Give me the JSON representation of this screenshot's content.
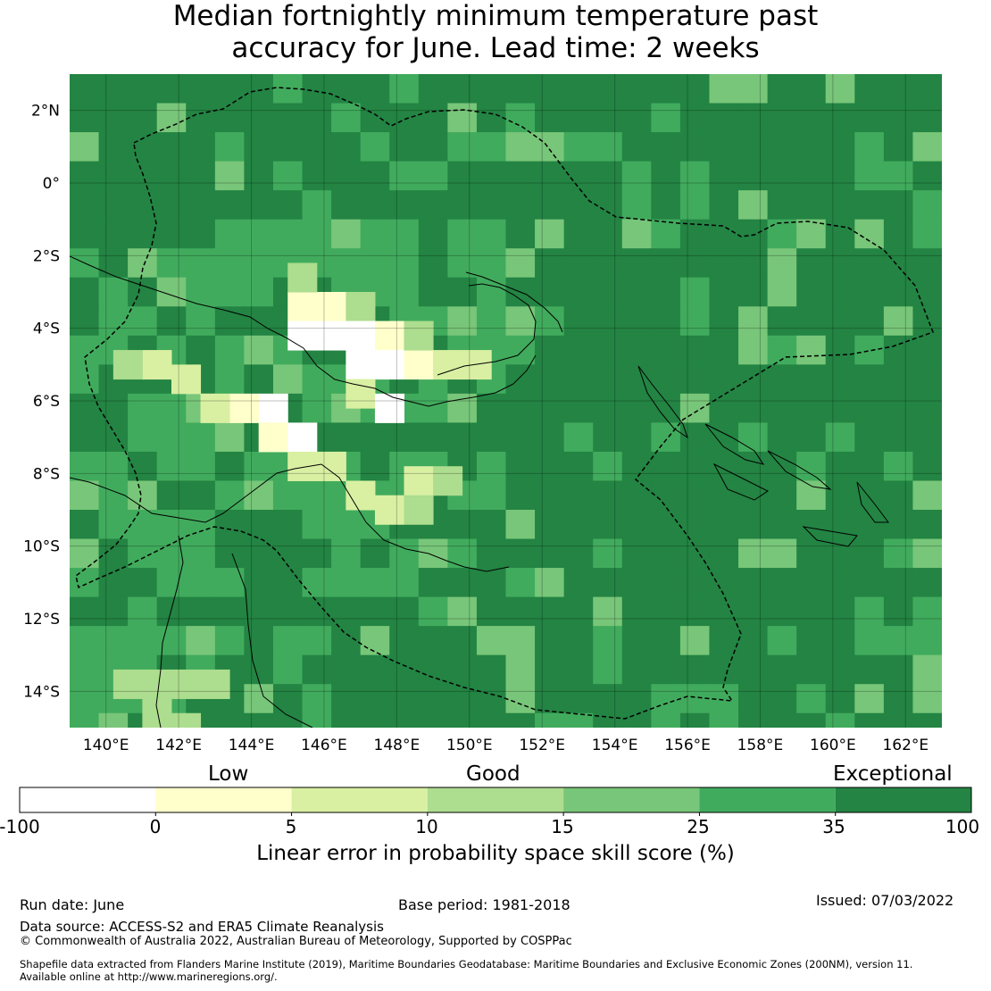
{
  "title": {
    "line1": "Median fortnightly minimum temperature past",
    "line2": "accuracy for June. Lead time: 2 weeks"
  },
  "map": {
    "lon_range": [
      139,
      163
    ],
    "lat_range": [
      -15,
      3
    ],
    "lon_ticks": [
      "140°E",
      "142°E",
      "144°E",
      "146°E",
      "148°E",
      "150°E",
      "152°E",
      "154°E",
      "156°E",
      "158°E",
      "160°E",
      "162°E"
    ],
    "lat_ticks": [
      "2°N",
      "0°",
      "2°S",
      "4°S",
      "6°S",
      "8°S",
      "10°S",
      "12°S",
      "14°S"
    ],
    "grid": true,
    "cell_size_deg": 0.8,
    "anomaly_cells": [
      {
        "lon": 145.0,
        "lat": -3.4,
        "class": 1
      },
      {
        "lon": 145.8,
        "lat": -3.4,
        "class": 1
      },
      {
        "lon": 145.0,
        "lat": -2.6,
        "class": 3
      },
      {
        "lon": 146.6,
        "lat": -3.4,
        "class": 3
      },
      {
        "lon": 145.0,
        "lat": -4.2,
        "class": 0
      },
      {
        "lon": 145.8,
        "lat": -4.2,
        "class": 0
      },
      {
        "lon": 146.6,
        "lat": -4.2,
        "class": 0
      },
      {
        "lon": 147.4,
        "lat": -4.2,
        "class": 1
      },
      {
        "lon": 146.6,
        "lat": -5.0,
        "class": 0
      },
      {
        "lon": 147.4,
        "lat": -5.0,
        "class": 0
      },
      {
        "lon": 148.2,
        "lat": -5.0,
        "class": 1
      },
      {
        "lon": 148.2,
        "lat": -4.2,
        "class": 3
      },
      {
        "lon": 149.0,
        "lat": -5.0,
        "class": 2
      },
      {
        "lon": 149.8,
        "lat": -5.0,
        "class": 2
      },
      {
        "lon": 146.6,
        "lat": -5.8,
        "class": 2
      },
      {
        "lon": 147.4,
        "lat": -6.2,
        "class": 0
      },
      {
        "lon": 144.2,
        "lat": -6.2,
        "class": 0
      },
      {
        "lon": 143.4,
        "lat": -6.2,
        "class": 1
      },
      {
        "lon": 142.6,
        "lat": -6.2,
        "class": 2
      },
      {
        "lon": 141.8,
        "lat": -5.4,
        "class": 2
      },
      {
        "lon": 141.0,
        "lat": -5.0,
        "class": 2
      },
      {
        "lon": 140.2,
        "lat": -5.0,
        "class": 3
      },
      {
        "lon": 144.2,
        "lat": -7.0,
        "class": 1
      },
      {
        "lon": 145.0,
        "lat": -7.0,
        "class": 0
      },
      {
        "lon": 145.0,
        "lat": -7.8,
        "class": 2
      },
      {
        "lon": 145.8,
        "lat": -7.8,
        "class": 2
      },
      {
        "lon": 146.6,
        "lat": -8.6,
        "class": 2
      },
      {
        "lon": 147.4,
        "lat": -9.0,
        "class": 2
      },
      {
        "lon": 148.2,
        "lat": -8.2,
        "class": 2
      },
      {
        "lon": 148.2,
        "lat": -9.0,
        "class": 3
      },
      {
        "lon": 149.0,
        "lat": -8.2,
        "class": 3
      },
      {
        "lon": 140.2,
        "lat": -13.8,
        "class": 3
      },
      {
        "lon": 141.0,
        "lat": -13.8,
        "class": 3
      },
      {
        "lon": 141.8,
        "lat": -13.8,
        "class": 3
      },
      {
        "lon": 142.6,
        "lat": -13.8,
        "class": 3
      },
      {
        "lon": 141.0,
        "lat": -14.6,
        "class": 3
      },
      {
        "lon": 141.8,
        "lat": -15.0,
        "class": 3
      }
    ]
  },
  "colorbar": {
    "categories": [
      "Low",
      "Good",
      "Exceptional"
    ],
    "ticks": [
      "-100",
      "0",
      "5",
      "10",
      "15",
      "25",
      "35",
      "100"
    ],
    "colors": [
      "#ffffff",
      "#ffffcc",
      "#d9f0a3",
      "#addd8e",
      "#78c679",
      "#41ab5d",
      "#238443"
    ],
    "xlabel": "Linear error in probability space skill score (%)"
  },
  "footer": {
    "run_date": "Run date: June",
    "base_period": "Base period: 1981-2018",
    "issued": "Issued: 07/03/2022",
    "data_source": "Data source: ACCESS-S2 and ERA5 Climate Reanalysis",
    "copyright": "© Commonwealth of Australia 2022, Australian Bureau of Meteorology, Supported by COSPPac",
    "shapefile_line1": "Shapefile data extracted from Flanders Marine Institute (2019), Maritime Boundaries Geodatabase: Maritime Boundaries and Exclusive Economic Zones (200NM), version 11.",
    "shapefile_line2": "Available online at http://www.marineregions.org/."
  }
}
